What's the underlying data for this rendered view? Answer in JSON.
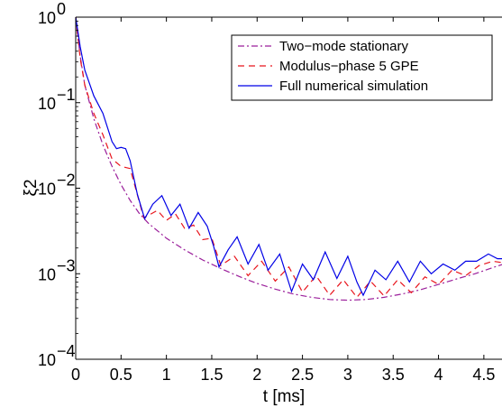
{
  "chart_data": {
    "type": "line",
    "xlabel": "t [ms]",
    "ylabel": "ξ2",
    "xlim": [
      0,
      4.7
    ],
    "ylim": [
      0.0001,
      1
    ],
    "yscale": "log",
    "grid": false,
    "legend_position": "top-right",
    "x_ticks": [
      "0",
      "0.5",
      "1",
      "1.5",
      "2",
      "2.5",
      "3",
      "3.5",
      "4",
      "4.5"
    ],
    "y_ticks": [
      {
        "base": "10",
        "exp": "0"
      },
      {
        "base": "10",
        "exp": "−1"
      },
      {
        "base": "10",
        "exp": "−2"
      },
      {
        "base": "10",
        "exp": "−3"
      },
      {
        "base": "10",
        "exp": "−4"
      }
    ],
    "series": [
      {
        "name": "Two−mode stationary",
        "color": "#9b1f9b",
        "dash": "dashdot",
        "x": [
          0,
          0.05,
          0.1,
          0.2,
          0.3,
          0.4,
          0.5,
          0.6,
          0.7,
          0.8,
          1.0,
          1.2,
          1.4,
          1.6,
          1.8,
          2.0,
          2.2,
          2.4,
          2.6,
          2.8,
          3.0,
          3.2,
          3.4,
          3.6,
          3.8,
          4.0,
          4.2,
          4.4,
          4.6,
          4.7
        ],
        "y": [
          1.0,
          0.35,
          0.16,
          0.065,
          0.032,
          0.018,
          0.011,
          0.0072,
          0.0051,
          0.0039,
          0.0026,
          0.0019,
          0.00145,
          0.00115,
          0.00093,
          0.00077,
          0.00066,
          0.00058,
          0.00053,
          0.0005,
          0.00049,
          0.0005,
          0.00053,
          0.00058,
          0.00065,
          0.00075,
          0.00087,
          0.001,
          0.00118,
          0.00128
        ]
      },
      {
        "name": "Modulus−phase 5 GPE",
        "color": "#e8141c",
        "dash": "dashed",
        "x": [
          0,
          0.05,
          0.1,
          0.2,
          0.3,
          0.4,
          0.5,
          0.6,
          0.75,
          0.9,
          1.0,
          1.1,
          1.2,
          1.3,
          1.4,
          1.5,
          1.6,
          1.75,
          1.9,
          2.05,
          2.2,
          2.35,
          2.5,
          2.65,
          2.8,
          2.95,
          3.1,
          3.25,
          3.4,
          3.55,
          3.7,
          3.85,
          4.0,
          4.15,
          4.3,
          4.45,
          4.6,
          4.7
        ],
        "y": [
          1.0,
          0.33,
          0.16,
          0.075,
          0.042,
          0.022,
          0.018,
          0.017,
          0.0045,
          0.0055,
          0.0042,
          0.005,
          0.0034,
          0.0037,
          0.0025,
          0.0026,
          0.00125,
          0.0016,
          0.00095,
          0.0014,
          0.00082,
          0.0012,
          0.00061,
          0.00095,
          0.00056,
          0.00085,
          0.00053,
          0.00082,
          0.00055,
          0.00085,
          0.0006,
          0.00092,
          0.00075,
          0.0011,
          0.00095,
          0.00125,
          0.0014,
          0.00135
        ]
      },
      {
        "name": "Full numerical simulation",
        "color": "#0000e6",
        "dash": "solid",
        "x": [
          0,
          0.05,
          0.1,
          0.2,
          0.3,
          0.4,
          0.45,
          0.5,
          0.55,
          0.6,
          0.68,
          0.76,
          0.85,
          0.95,
          1.05,
          1.15,
          1.25,
          1.35,
          1.45,
          1.52,
          1.58,
          1.68,
          1.78,
          1.9,
          2.02,
          2.12,
          2.25,
          2.38,
          2.5,
          2.62,
          2.75,
          2.88,
          3.0,
          3.1,
          3.17,
          3.3,
          3.42,
          3.55,
          3.68,
          3.8,
          3.92,
          4.05,
          4.18,
          4.3,
          4.42,
          4.55,
          4.65,
          4.7
        ],
        "y": [
          1.0,
          0.45,
          0.24,
          0.12,
          0.075,
          0.035,
          0.029,
          0.03,
          0.029,
          0.021,
          0.0085,
          0.0044,
          0.0065,
          0.0082,
          0.0048,
          0.0065,
          0.0034,
          0.0052,
          0.0036,
          0.0021,
          0.0012,
          0.0019,
          0.0027,
          0.0013,
          0.0022,
          0.0011,
          0.0017,
          0.00062,
          0.0013,
          0.00085,
          0.0018,
          0.00088,
          0.0016,
          0.0008,
          0.00056,
          0.0011,
          0.00085,
          0.0014,
          0.0008,
          0.0014,
          0.001,
          0.0013,
          0.0011,
          0.0014,
          0.0014,
          0.0017,
          0.0015,
          0.0015
        ]
      }
    ]
  }
}
